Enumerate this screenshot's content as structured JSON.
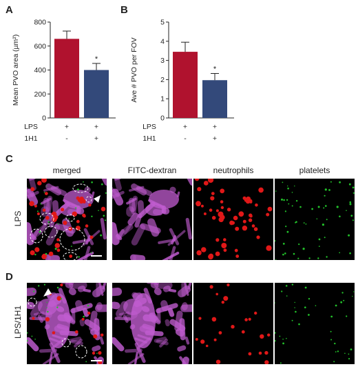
{
  "figure": {
    "panels": {
      "A": "A",
      "B": "B",
      "C": "C",
      "D": "D"
    },
    "columns": [
      "merged",
      "FITC-dextran",
      "neutrophils",
      "platelets"
    ],
    "rows": [
      "LPS",
      "LPS/1H1"
    ],
    "treatment_rows": {
      "lps_label": "LPS",
      "h1_label": "1H1",
      "lps_values": [
        "+",
        "+"
      ],
      "h1_values": [
        "-",
        "+"
      ]
    }
  },
  "colors": {
    "red": "#b0122e",
    "blue": "#33497a"
  },
  "chart_data": [
    {
      "type": "bar",
      "panel": "A",
      "categories": [
        "LPS +, 1H1 -",
        "LPS +, 1H1 +"
      ],
      "values": [
        660,
        400
      ],
      "errors": [
        65,
        55
      ],
      "ylabel": "Mean PVO area (µm²)",
      "ylim": [
        0,
        800
      ],
      "yticks": [
        "0",
        "200",
        "400",
        "600",
        "800"
      ],
      "annotations": [
        "*"
      ]
    },
    {
      "type": "bar",
      "panel": "B",
      "categories": [
        "LPS +, 1H1 -",
        "LPS +, 1H1 +"
      ],
      "values": [
        3.45,
        1.97
      ],
      "errors": [
        0.5,
        0.35
      ],
      "ylabel": "Ave # PVO per FOV",
      "ylim": [
        0,
        5
      ],
      "yticks": [
        "0",
        "1",
        "2",
        "3",
        "4",
        "5"
      ],
      "annotations": [
        "*"
      ]
    }
  ]
}
